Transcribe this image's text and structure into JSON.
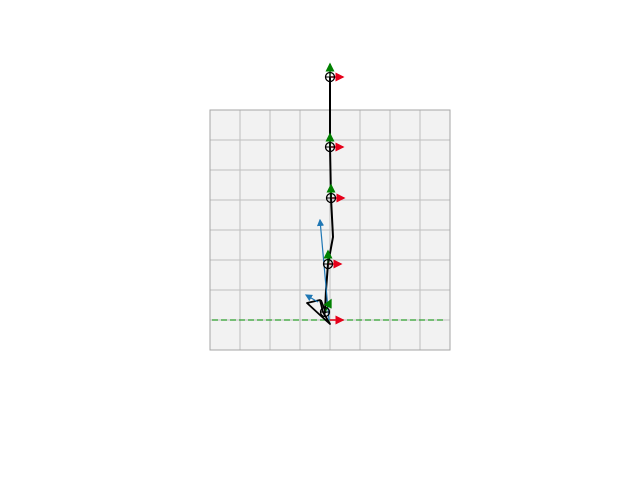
{
  "colors": {
    "background": "#ffffff",
    "panel_fill": "#f2f2f2",
    "grid_line": "#bfbfbf",
    "panel_border": "#a6a6a6",
    "ground_line": "#2ca02c",
    "skeleton": "#000000",
    "frame_y_axis": "#008000",
    "frame_x_axis": "#e6001a",
    "force_vector": "#1f77b4"
  },
  "diagram": {
    "ground_style": "dashed",
    "joint_marker": "circle-with-cross",
    "joint_count": 5,
    "grid": true
  }
}
